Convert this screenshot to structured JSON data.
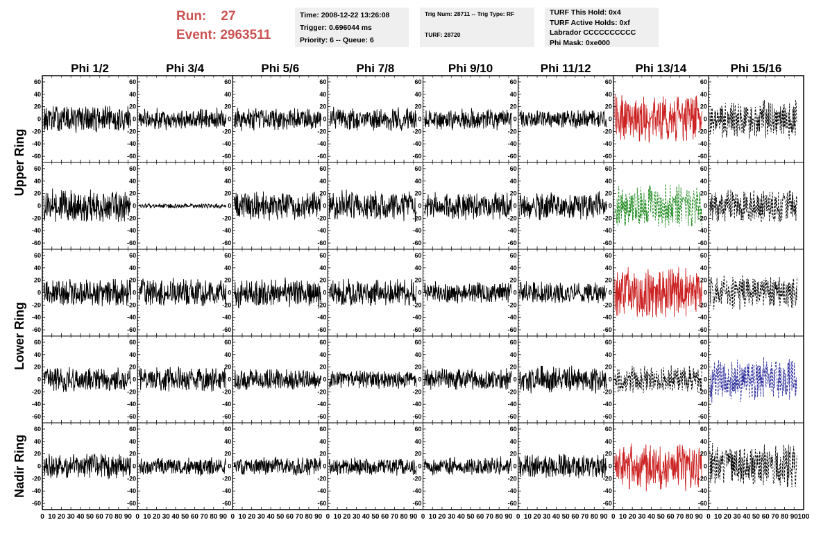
{
  "header": {
    "run_label": "Run:",
    "run_value": "27",
    "event_label": "Event:",
    "event_value": "2963511"
  },
  "info_boxes": {
    "time": "Time: 2008-12-22 13:26:08",
    "trigger": "Trigger: 0.696044 ms",
    "priority": "Priority: 6 -- Queue: 6",
    "trig_num": "Trig Num: 28711 -- Trig Type: RF",
    "turf": "TURF: 28720",
    "turf_this_hold": "TURF This Hold: 0x4",
    "turf_active_holds": "TURF Active Holds: 0xf",
    "labrador": "Labrador CCCCCCCCCC",
    "phi_mask": "Phi Mask: 0xe000"
  },
  "chart_data": {
    "type": "line",
    "columns": [
      "Phi 1/2",
      "Phi 3/4",
      "Phi 5/6",
      "Phi 7/8",
      "Phi 9/10",
      "Phi 11/12",
      "Phi 13/14",
      "Phi 15/16"
    ],
    "row_labels": [
      "Upper Ring",
      "Lower Ring",
      "Nadir Ring"
    ],
    "rows": 5,
    "xlim": [
      0,
      100
    ],
    "ylim": [
      -70,
      70
    ],
    "ytick_labels": [
      "60",
      "40",
      "20",
      "0",
      "-20",
      "-40",
      "-60"
    ],
    "x_tick_labels": [
      "0",
      "10",
      "20",
      "30",
      "40",
      "50",
      "60",
      "70",
      "80",
      "90",
      "100"
    ],
    "panels": [
      {
        "row": 0,
        "col": 0,
        "color": "#000000",
        "dashed": false,
        "amplitude": 18
      },
      {
        "row": 0,
        "col": 1,
        "color": "#000000",
        "dashed": false,
        "amplitude": 14
      },
      {
        "row": 0,
        "col": 2,
        "color": "#000000",
        "dashed": false,
        "amplitude": 15
      },
      {
        "row": 0,
        "col": 3,
        "color": "#000000",
        "dashed": false,
        "amplitude": 15
      },
      {
        "row": 0,
        "col": 4,
        "color": "#000000",
        "dashed": false,
        "amplitude": 14
      },
      {
        "row": 0,
        "col": 5,
        "color": "#000000",
        "dashed": false,
        "amplitude": 12
      },
      {
        "row": 0,
        "col": 6,
        "color": "#cc2222",
        "dashed": false,
        "amplitude": 32
      },
      {
        "row": 0,
        "col": 7,
        "color": "#000000",
        "dashed": true,
        "amplitude": 25
      },
      {
        "row": 1,
        "col": 0,
        "color": "#000000",
        "dashed": false,
        "amplitude": 22
      },
      {
        "row": 1,
        "col": 1,
        "color": "#000000",
        "dashed": false,
        "amplitude": 3
      },
      {
        "row": 1,
        "col": 2,
        "color": "#000000",
        "dashed": false,
        "amplitude": 20
      },
      {
        "row": 1,
        "col": 3,
        "color": "#000000",
        "dashed": false,
        "amplitude": 20
      },
      {
        "row": 1,
        "col": 4,
        "color": "#000000",
        "dashed": false,
        "amplitude": 18
      },
      {
        "row": 1,
        "col": 5,
        "color": "#000000",
        "dashed": false,
        "amplitude": 18
      },
      {
        "row": 1,
        "col": 6,
        "color": "#228b22",
        "dashed": true,
        "amplitude": 28
      },
      {
        "row": 1,
        "col": 7,
        "color": "#000000",
        "dashed": true,
        "amplitude": 22
      },
      {
        "row": 2,
        "col": 0,
        "color": "#000000",
        "dashed": false,
        "amplitude": 18
      },
      {
        "row": 2,
        "col": 1,
        "color": "#000000",
        "dashed": false,
        "amplitude": 18
      },
      {
        "row": 2,
        "col": 2,
        "color": "#000000",
        "dashed": false,
        "amplitude": 20
      },
      {
        "row": 2,
        "col": 3,
        "color": "#000000",
        "dashed": false,
        "amplitude": 18
      },
      {
        "row": 2,
        "col": 4,
        "color": "#000000",
        "dashed": false,
        "amplitude": 14
      },
      {
        "row": 2,
        "col": 5,
        "color": "#000000",
        "dashed": false,
        "amplitude": 14
      },
      {
        "row": 2,
        "col": 6,
        "color": "#cc2222",
        "dashed": false,
        "amplitude": 34
      },
      {
        "row": 2,
        "col": 7,
        "color": "#000000",
        "dashed": true,
        "amplitude": 22
      },
      {
        "row": 3,
        "col": 0,
        "color": "#000000",
        "dashed": false,
        "amplitude": 16
      },
      {
        "row": 3,
        "col": 1,
        "color": "#000000",
        "dashed": false,
        "amplitude": 16
      },
      {
        "row": 3,
        "col": 2,
        "color": "#000000",
        "dashed": false,
        "amplitude": 14
      },
      {
        "row": 3,
        "col": 3,
        "color": "#000000",
        "dashed": false,
        "amplitude": 12
      },
      {
        "row": 3,
        "col": 4,
        "color": "#000000",
        "dashed": false,
        "amplitude": 14
      },
      {
        "row": 3,
        "col": 5,
        "color": "#000000",
        "dashed": false,
        "amplitude": 18
      },
      {
        "row": 3,
        "col": 6,
        "color": "#000000",
        "dashed": true,
        "amplitude": 18
      },
      {
        "row": 3,
        "col": 7,
        "color": "#2a2a9a",
        "dashed": true,
        "amplitude": 28
      },
      {
        "row": 4,
        "col": 0,
        "color": "#000000",
        "dashed": false,
        "amplitude": 16
      },
      {
        "row": 4,
        "col": 1,
        "color": "#000000",
        "dashed": false,
        "amplitude": 12
      },
      {
        "row": 4,
        "col": 2,
        "color": "#000000",
        "dashed": false,
        "amplitude": 12
      },
      {
        "row": 4,
        "col": 3,
        "color": "#000000",
        "dashed": false,
        "amplitude": 12
      },
      {
        "row": 4,
        "col": 4,
        "color": "#000000",
        "dashed": false,
        "amplitude": 12
      },
      {
        "row": 4,
        "col": 5,
        "color": "#000000",
        "dashed": false,
        "amplitude": 16
      },
      {
        "row": 4,
        "col": 6,
        "color": "#cc2222",
        "dashed": false,
        "amplitude": 30
      },
      {
        "row": 4,
        "col": 7,
        "color": "#000000",
        "dashed": true,
        "amplitude": 28
      }
    ]
  }
}
